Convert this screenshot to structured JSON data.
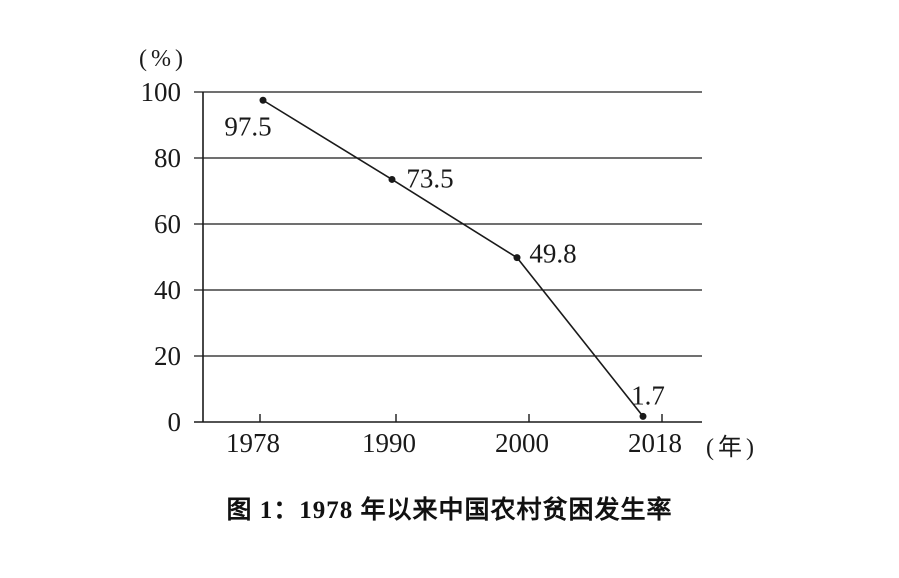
{
  "page": {
    "background_color": "#ffffff",
    "ink_color": "#1a1a1a"
  },
  "chart_data": {
    "type": "line",
    "title": "图 1：1978 年以来中国农村贫困发生率",
    "categories": [
      "1978",
      "1990",
      "2000",
      "2018"
    ],
    "values": [
      97.5,
      73.5,
      49.8,
      1.7
    ],
    "point_labels": [
      "97.5",
      "73.5",
      "49.8",
      "1.7"
    ],
    "series": [
      {
        "name": "农村贫困发生率",
        "values": [
          97.5,
          73.5,
          49.8,
          1.7
        ]
      }
    ],
    "xlabel": "(年)",
    "ylabel": "(%)",
    "y_ticks": [
      0,
      20,
      40,
      60,
      80,
      100
    ],
    "ylim": [
      0,
      100
    ],
    "grid": "horizontal",
    "legend": "none",
    "line_color": "#1a1a1a",
    "marker": "filled-circle"
  }
}
